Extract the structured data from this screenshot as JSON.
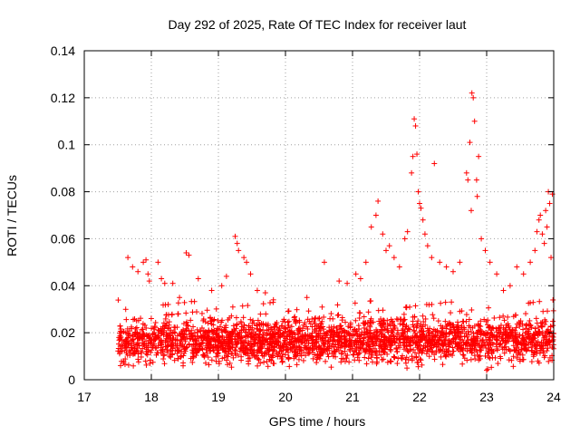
{
  "chart_data": {
    "type": "scatter",
    "title": "Day 292 of 2025, Rate Of TEC Index for receiver laut",
    "xlabel": "GPS time / hours",
    "ylabel": "ROTI / TECUs",
    "xlim": [
      17,
      24
    ],
    "ylim": [
      0,
      0.14
    ],
    "x_ticks": [
      "17",
      "18",
      "19",
      "20",
      "21",
      "22",
      "23",
      "24"
    ],
    "y_ticks": [
      "0",
      "0.02",
      "0.04",
      "0.06",
      "0.08",
      "0.1",
      "0.12",
      "0.14"
    ],
    "grid": true,
    "marker": "+",
    "color": "#ff0000",
    "series": [
      {
        "name": "ROTI",
        "points": [
          [
            17.65,
            0.052
          ],
          [
            17.72,
            0.048
          ],
          [
            17.8,
            0.046
          ],
          [
            17.88,
            0.05
          ],
          [
            17.92,
            0.051
          ],
          [
            17.95,
            0.045
          ],
          [
            17.97,
            0.042
          ],
          [
            18.1,
            0.05
          ],
          [
            18.15,
            0.043
          ],
          [
            18.2,
            0.041
          ],
          [
            18.32,
            0.041
          ],
          [
            18.42,
            0.035
          ],
          [
            18.52,
            0.054
          ],
          [
            18.56,
            0.053
          ],
          [
            18.7,
            0.043
          ],
          [
            18.9,
            0.038
          ],
          [
            19.05,
            0.04
          ],
          [
            19.12,
            0.044
          ],
          [
            19.25,
            0.061
          ],
          [
            19.28,
            0.058
          ],
          [
            19.3,
            0.055
          ],
          [
            19.38,
            0.052
          ],
          [
            19.42,
            0.05
          ],
          [
            19.48,
            0.045
          ],
          [
            19.58,
            0.038
          ],
          [
            19.7,
            0.037
          ],
          [
            19.82,
            0.034
          ],
          [
            20.32,
            0.035
          ],
          [
            20.58,
            0.05
          ],
          [
            20.8,
            0.042
          ],
          [
            20.92,
            0.041
          ],
          [
            21.05,
            0.045
          ],
          [
            21.12,
            0.043
          ],
          [
            21.2,
            0.05
          ],
          [
            21.28,
            0.065
          ],
          [
            21.35,
            0.07
          ],
          [
            21.38,
            0.076
          ],
          [
            21.45,
            0.062
          ],
          [
            21.5,
            0.055
          ],
          [
            21.55,
            0.057
          ],
          [
            21.62,
            0.052
          ],
          [
            21.7,
            0.048
          ],
          [
            21.78,
            0.06
          ],
          [
            21.82,
            0.063
          ],
          [
            21.88,
            0.088
          ],
          [
            21.9,
            0.095
          ],
          [
            21.92,
            0.111
          ],
          [
            21.94,
            0.108
          ],
          [
            21.96,
            0.096
          ],
          [
            21.98,
            0.08
          ],
          [
            22.0,
            0.075
          ],
          [
            22.02,
            0.073
          ],
          [
            22.05,
            0.068
          ],
          [
            22.08,
            0.062
          ],
          [
            22.12,
            0.057
          ],
          [
            22.18,
            0.052
          ],
          [
            22.22,
            0.092
          ],
          [
            22.3,
            0.05
          ],
          [
            22.4,
            0.048
          ],
          [
            22.5,
            0.046
          ],
          [
            22.6,
            0.05
          ],
          [
            22.7,
            0.088
          ],
          [
            22.72,
            0.085
          ],
          [
            22.75,
            0.101
          ],
          [
            22.77,
            0.072
          ],
          [
            22.78,
            0.122
          ],
          [
            22.8,
            0.12
          ],
          [
            22.82,
            0.11
          ],
          [
            22.85,
            0.085
          ],
          [
            22.86,
            0.078
          ],
          [
            22.88,
            0.095
          ],
          [
            22.92,
            0.06
          ],
          [
            22.98,
            0.055
          ],
          [
            23.05,
            0.05
          ],
          [
            23.15,
            0.045
          ],
          [
            23.25,
            0.038
          ],
          [
            23.35,
            0.04
          ],
          [
            23.45,
            0.048
          ],
          [
            23.55,
            0.045
          ],
          [
            23.65,
            0.05
          ],
          [
            23.72,
            0.055
          ],
          [
            23.75,
            0.063
          ],
          [
            23.78,
            0.068
          ],
          [
            23.8,
            0.07
          ],
          [
            23.83,
            0.062
          ],
          [
            23.86,
            0.058
          ],
          [
            23.88,
            0.072
          ],
          [
            23.9,
            0.065
          ],
          [
            23.92,
            0.08
          ],
          [
            23.94,
            0.075
          ],
          [
            23.96,
            0.052
          ],
          [
            23.98,
            0.079
          ],
          [
            23.0,
            0.004
          ]
        ],
        "dense_band": {
          "x_range": [
            17.5,
            24.0
          ],
          "typical_min": 0.003,
          "typical_max": 0.03,
          "typical_center": 0.016
        }
      }
    ]
  }
}
